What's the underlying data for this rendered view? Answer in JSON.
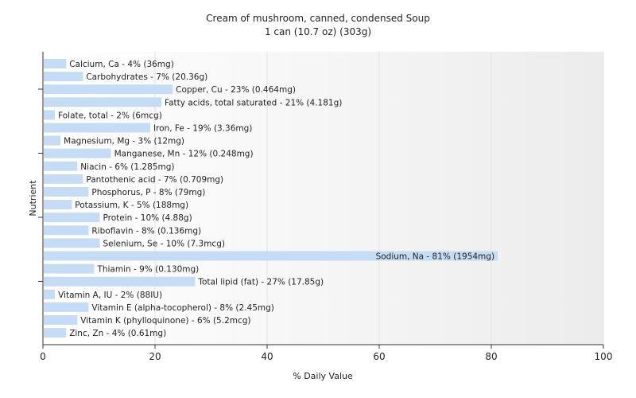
{
  "chart_data": {
    "type": "bar",
    "orientation": "horizontal",
    "title": "Cream of mushroom, canned, condensed Soup",
    "subtitle": "1 can (10.7 oz) (303g)",
    "xlabel": "% Daily Value",
    "ylabel": "Nutrient",
    "xlim": [
      0,
      100
    ],
    "xticks": [
      0,
      20,
      40,
      60,
      80,
      100
    ],
    "grid": true,
    "bar_color": "#c6dcf5",
    "categories": [
      "Calcium, Ca - 4% (36mg)",
      "Carbohydrates - 7% (20.36g)",
      "Copper, Cu - 23% (0.464mg)",
      "Fatty acids, total saturated - 21% (4.181g)",
      "Folate, total - 2% (6mcg)",
      "Iron, Fe - 19% (3.36mg)",
      "Magnesium, Mg - 3% (12mg)",
      "Manganese, Mn - 12% (0.248mg)",
      "Niacin - 6% (1.285mg)",
      "Pantothenic acid - 7% (0.709mg)",
      "Phosphorus, P - 8% (79mg)",
      "Potassium, K - 5% (188mg)",
      "Protein - 10% (4.88g)",
      "Riboflavin - 8% (0.136mg)",
      "Selenium, Se - 10% (7.3mcg)",
      "Sodium, Na - 81% (1954mg)",
      "Thiamin - 9% (0.130mg)",
      "Total lipid (fat) - 27% (17.85g)",
      "Vitamin A, IU - 2% (88IU)",
      "Vitamin E (alpha-tocopherol) - 8% (2.45mg)",
      "Vitamin K (phylloquinone) - 6% (5.2mcg)",
      "Zinc, Zn - 4% (0.61mg)"
    ],
    "values": [
      4,
      7,
      23,
      21,
      2,
      19,
      3,
      12,
      6,
      7,
      8,
      5,
      10,
      8,
      10,
      81,
      9,
      27,
      2,
      8,
      6,
      4
    ]
  }
}
